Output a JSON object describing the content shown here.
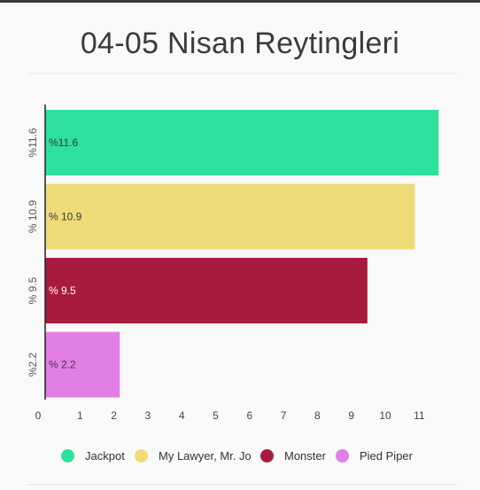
{
  "title": "04-05 Nisan Reytingleri",
  "colors": {
    "jackpot": "#2ee09e",
    "lawyer": "#eedb78",
    "monster": "#a81b3f",
    "pied_piper": "#e27fe6",
    "axis": "#222222",
    "text": "#333333"
  },
  "chart_data": {
    "type": "bar",
    "orientation": "horizontal",
    "title": "04-05 Nisan Reytingleri",
    "categories": [
      "%11.6",
      "% 10.9",
      "% 9.5",
      "%2.2"
    ],
    "series": [
      {
        "name": "Jackpot",
        "value": 11.6,
        "label": "%11.6",
        "color": "#2ee09e"
      },
      {
        "name": "My Lawyer, Mr. Jo",
        "value": 10.9,
        "label": "% 10.9",
        "color": "#eedb78"
      },
      {
        "name": "Monster",
        "value": 9.5,
        "label": "% 9.5",
        "color": "#a81b3f"
      },
      {
        "name": "Pied Piper",
        "value": 2.2,
        "label": "% 2.2",
        "color": "#e27fe6"
      }
    ],
    "xlim": [
      0,
      12
    ],
    "xticks": [
      0,
      1,
      2,
      3,
      4,
      5,
      6,
      7,
      8,
      9,
      10,
      11
    ],
    "grid": false,
    "legend_position": "bottom"
  },
  "legend": [
    {
      "label": "Jackpot",
      "color": "#2ee09e"
    },
    {
      "label": "My Lawyer, Mr. Jo",
      "color": "#eedb78"
    },
    {
      "label": "Monster",
      "color": "#a81b3f"
    },
    {
      "label": "Pied Piper",
      "color": "#e27fe6"
    }
  ]
}
